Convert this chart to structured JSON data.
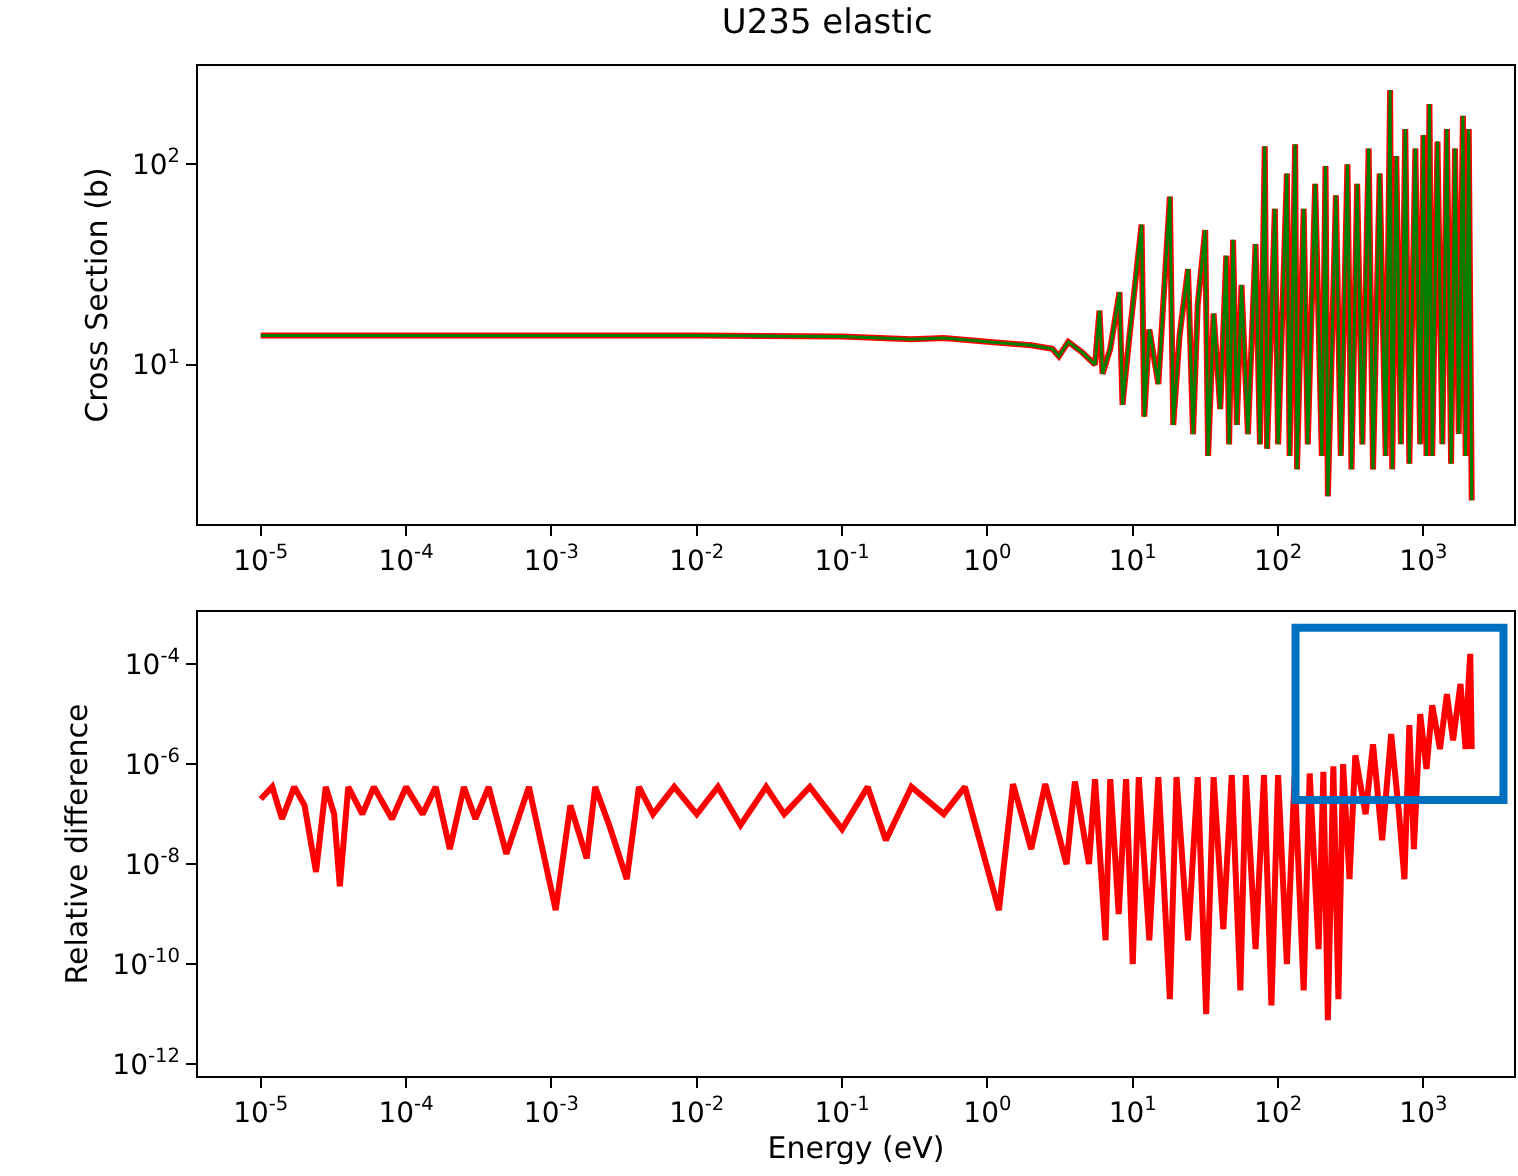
{
  "chart_data": [
    {
      "type": "line",
      "title": "U235 elastic",
      "ylabel": "Cross Section (b)",
      "log": "xy",
      "grid": false,
      "xlim": [
        3.7e-06,
        4200
      ],
      "ylim": [
        1.6,
        310
      ],
      "xticks": [
        {
          "value": 1e-05,
          "label": "10$^{-5}$"
        },
        {
          "value": 0.0001,
          "label": "10$^{-4}$"
        },
        {
          "value": 0.001,
          "label": "10$^{-3}$"
        },
        {
          "value": 0.01,
          "label": "10$^{-2}$"
        },
        {
          "value": 0.1,
          "label": "10$^{-1}$"
        },
        {
          "value": 1,
          "label": "10$^{0}$"
        },
        {
          "value": 10,
          "label": "10$^{1}$"
        },
        {
          "value": 100,
          "label": "10$^{2}$"
        },
        {
          "value": 1000,
          "label": "10$^{3}$"
        }
      ],
      "yticks": [
        {
          "value": 10,
          "label": "10$^{1}$"
        },
        {
          "value": 100,
          "label": "10$^{2}$"
        }
      ],
      "x": [
        1e-05,
        0.001,
        0.01,
        0.1,
        0.3,
        0.5,
        1,
        2,
        2.8,
        3.1,
        3.6,
        4.5,
        5.5,
        5.9,
        6.2,
        7,
        8.1,
        8.5,
        9.5,
        11.5,
        12,
        13,
        15,
        18,
        19,
        21,
        24,
        26,
        28,
        31.5,
        33,
        36,
        40,
        44,
        46,
        49,
        52,
        56,
        62,
        70,
        75,
        81,
        84,
        95,
        100,
        115,
        120,
        131,
        135,
        150,
        160,
        180,
        200,
        212,
        220,
        250,
        270,
        300,
        320,
        350,
        380,
        420,
        450,
        500,
        550,
        590,
        610,
        650,
        700,
        750,
        800,
        880,
        950,
        1000,
        1050,
        1100,
        1150,
        1250,
        1350,
        1450,
        1550,
        1650,
        1750,
        1870,
        1950,
        2050,
        2150
      ],
      "series": [
        {
          "color": "#ff0000",
          "values": [
            14,
            14,
            14,
            13.8,
            13.4,
            13.6,
            13,
            12.5,
            12,
            11,
            13,
            11.5,
            10,
            18.6,
            9,
            12,
            23,
            6.3,
            14,
            50,
            5.5,
            15,
            8,
            69,
            5,
            14,
            30,
            4.5,
            20,
            47,
            3.5,
            18,
            6,
            35,
            4,
            42,
            5,
            25,
            4.5,
            40,
            4,
            123,
            3.8,
            60,
            4,
            90,
            3.5,
            126,
            3,
            60,
            4,
            80,
            3.5,
            98,
            2.2,
            70,
            3.5,
            100,
            3,
            80,
            4,
            120,
            3,
            90,
            3.5,
            235,
            3,
            110,
            4,
            150,
            3.2,
            120,
            4,
            140,
            3.5,
            200,
            3.5,
            130,
            4,
            150,
            3.2,
            120,
            4.5,
            175,
            3.5,
            150,
            2.1
          ]
        },
        {
          "color": "#008000",
          "values": [
            14,
            14,
            14,
            13.8,
            13.4,
            13.6,
            13,
            12.5,
            12,
            11,
            13,
            11.5,
            10,
            18.6,
            9,
            12,
            23,
            6.3,
            14,
            50,
            5.5,
            15,
            8,
            69,
            5,
            14,
            30,
            4.5,
            20,
            47,
            3.5,
            18,
            6,
            35,
            4,
            42,
            5,
            25,
            4.5,
            40,
            4,
            123,
            3.8,
            60,
            4,
            90,
            3.5,
            126,
            3,
            60,
            4,
            80,
            3.5,
            98,
            2.2,
            70,
            3.5,
            100,
            3,
            80,
            4,
            120,
            3,
            90,
            3.5,
            235,
            3,
            110,
            4,
            150,
            3.2,
            120,
            4,
            140,
            3.5,
            200,
            3.5,
            130,
            4,
            150,
            3.2,
            120,
            4.5,
            175,
            3.5,
            150,
            2.1
          ]
        }
      ]
    },
    {
      "type": "line",
      "xlabel": "Energy (eV)",
      "ylabel": "Relative difference",
      "log": "xy",
      "grid": false,
      "xlim": [
        3.7e-06,
        4200
      ],
      "ylim": [
        5.8e-13,
        0.0011
      ],
      "xticks": [
        {
          "value": 1e-05,
          "label": "10$^{-5}$"
        },
        {
          "value": 0.0001,
          "label": "10$^{-4}$"
        },
        {
          "value": 0.001,
          "label": "10$^{-3}$"
        },
        {
          "value": 0.01,
          "label": "10$^{-2}$"
        },
        {
          "value": 0.1,
          "label": "10$^{-1}$"
        },
        {
          "value": 1,
          "label": "10$^{0}$"
        },
        {
          "value": 10,
          "label": "10$^{1}$"
        },
        {
          "value": 100,
          "label": "10$^{2}$"
        },
        {
          "value": 1000,
          "label": "10$^{3}$"
        }
      ],
      "yticks": [
        {
          "value": 1e-12,
          "label": "10$^{-12}$"
        },
        {
          "value": 1e-10,
          "label": "10$^{-10}$"
        },
        {
          "value": 1e-08,
          "label": "10$^{-8}$"
        },
        {
          "value": 1e-06,
          "label": "10$^{-6}$"
        },
        {
          "value": 0.0001,
          "label": "10$^{-4}$"
        }
      ],
      "x": [
        1e-05,
        1.2e-05,
        1.4e-05,
        1.7e-05,
        2e-05,
        2.4e-05,
        2.8e-05,
        3.2e-05,
        3.5e-05,
        4e-05,
        5e-05,
        6e-05,
        8e-05,
        0.0001,
        0.00013,
        0.00016,
        0.0002,
        0.00025,
        0.0003,
        0.00037,
        0.00049,
        0.0007,
        0.00107,
        0.00135,
        0.00175,
        0.002,
        0.0025,
        0.0033,
        0.004,
        0.005,
        0.007,
        0.01,
        0.014,
        0.02,
        0.03,
        0.04,
        0.06,
        0.1,
        0.15,
        0.2,
        0.3,
        0.5,
        0.7,
        1.2,
        1.5,
        2,
        2.5,
        3.5,
        4,
        5,
        5.5,
        6.5,
        7,
        8,
        9,
        10,
        11,
        13,
        15,
        18,
        20,
        24,
        28,
        32,
        36,
        42,
        48,
        55,
        60,
        70,
        80,
        90,
        100,
        115,
        130,
        150,
        165,
        190,
        205,
        220,
        240,
        260,
        280,
        310,
        340,
        400,
        450,
        520,
        600,
        680,
        740,
        800,
        860,
        950,
        1050,
        1150,
        1300,
        1450,
        1600,
        1800,
        1950,
        2050,
        2100,
        2150
      ],
      "series": [
        {
          "color": "#ff0000",
          "values": [
            2e-07,
            3.5e-07,
            8e-08,
            3.5e-07,
            1.5e-07,
            7e-09,
            3.5e-07,
            1e-07,
            3.6e-09,
            3.5e-07,
            1e-07,
            3.5e-07,
            8e-08,
            3.5e-07,
            1e-07,
            3.5e-07,
            2e-08,
            3.5e-07,
            8e-08,
            3.5e-07,
            1.6e-08,
            3.5e-07,
            1.2e-09,
            1.5e-07,
            1.3e-08,
            3.5e-07,
            6e-08,
            5e-09,
            3.5e-07,
            1e-07,
            3.5e-07,
            1e-07,
            3.5e-07,
            6e-08,
            3.5e-07,
            1e-07,
            3.5e-07,
            5e-08,
            3.5e-07,
            3e-08,
            3.5e-07,
            1e-07,
            3.5e-07,
            1.2e-09,
            4e-07,
            2e-08,
            4e-07,
            1e-08,
            4.5e-07,
            1e-08,
            5e-07,
            3e-10,
            5e-07,
            1e-09,
            5e-07,
            1e-10,
            5.5e-07,
            3e-10,
            5.5e-07,
            2e-11,
            5.5e-07,
            3e-10,
            5.5e-07,
            1e-11,
            5.5e-07,
            5e-10,
            6e-07,
            3e-11,
            6e-07,
            2e-10,
            6e-07,
            1.5e-11,
            6e-07,
            1e-10,
            6e-07,
            3e-11,
            6.5e-07,
            2e-10,
            7e-07,
            7.6e-12,
            9e-07,
            2e-11,
            1e-06,
            5e-09,
            1.5e-06,
            1e-07,
            2.5e-06,
            3e-08,
            4e-06,
            1e-07,
            5e-09,
            6e-06,
            2e-08,
            1e-05,
            8e-07,
            1.5e-05,
            2e-06,
            2.5e-05,
            3e-06,
            4e-05,
            2e-06,
            5e-05,
            0.00016,
            2e-06
          ]
        }
      ]
    }
  ]
}
